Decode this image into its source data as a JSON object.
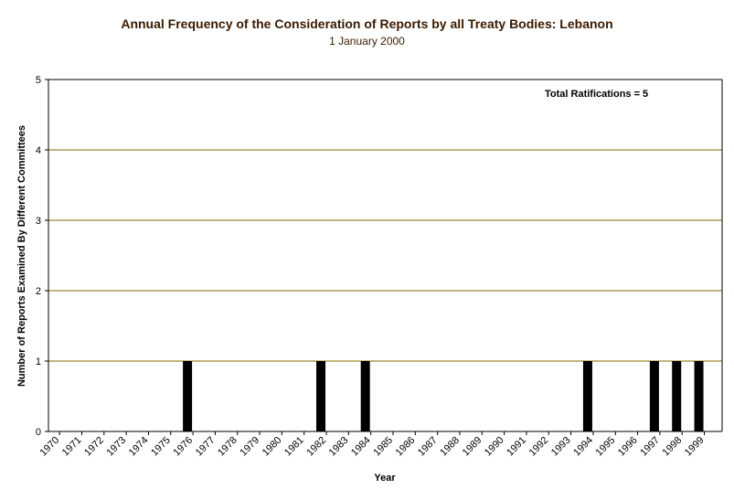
{
  "chart_data": {
    "type": "bar",
    "title": "Annual Frequency of the Consideration of Reports by all Treaty Bodies: Lebanon",
    "subtitle": "1 January 2000",
    "xlabel": "Year",
    "ylabel": "Number of Reports Examined By Different Committees",
    "annotation": "Total Ratifications = 5",
    "ylim": [
      0,
      5
    ],
    "yticks": [
      0,
      1,
      2,
      3,
      4,
      5
    ],
    "x_tick_labels": [
      "1970",
      "1971",
      "1972",
      "1973",
      "1974",
      "1975",
      "1976",
      "1977",
      "1978",
      "1979",
      "1980",
      "1981",
      "1982",
      "1983",
      "1984",
      "1985",
      "1986",
      "1987",
      "1988",
      "1989",
      "1990",
      "1991",
      "1992",
      "1993",
      "1994",
      "1995",
      "1996",
      "1997",
      "1998",
      "1999"
    ],
    "categories": [
      "1976",
      "1982",
      "1984",
      "1994",
      "1997",
      "1998",
      "1999"
    ],
    "values": [
      1,
      1,
      1,
      1,
      1,
      1,
      1
    ],
    "grid": true,
    "legend": "none",
    "colors": {
      "bar": "#000000",
      "grid": "#8a6a00",
      "axis": "#000000"
    }
  }
}
